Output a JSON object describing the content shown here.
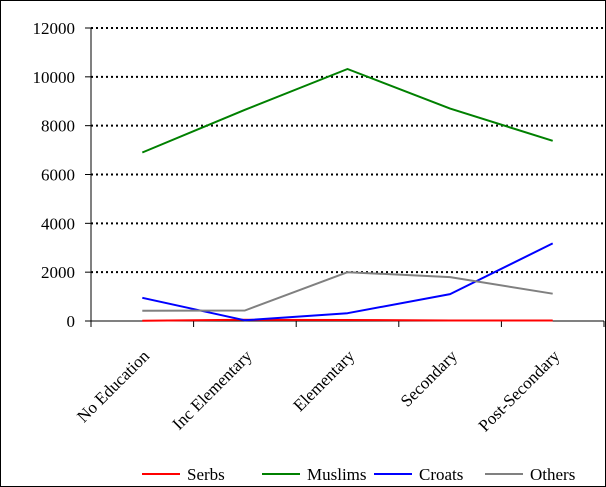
{
  "chart_data": {
    "type": "line",
    "categories": [
      "No Education",
      "Inc Elementary",
      "Elementary",
      "Secondary",
      "Post-Secondary"
    ],
    "series": [
      {
        "name": "Serbs",
        "color": "#ff0000",
        "values": [
          10,
          50,
          40,
          20,
          20
        ]
      },
      {
        "name": "Muslims",
        "color": "#008000",
        "values": [
          6900,
          8650,
          10320,
          8700,
          7380
        ]
      },
      {
        "name": "Croats",
        "color": "#0000ff",
        "values": [
          950,
          30,
          320,
          1100,
          3180
        ]
      },
      {
        "name": "Others",
        "color": "#808080",
        "values": [
          420,
          430,
          2000,
          1800,
          1120
        ]
      }
    ],
    "y_ticks": [
      "0",
      "2000",
      "4000",
      "6000",
      "8000",
      "10000",
      "12000"
    ],
    "ylim": [
      0,
      12000
    ],
    "grid": "horizontal-dotted",
    "legend_position": "bottom"
  }
}
